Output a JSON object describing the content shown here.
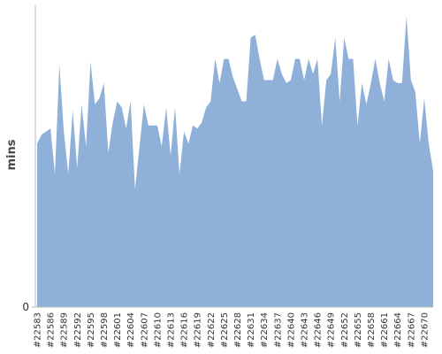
{
  "chart_data": {
    "type": "area",
    "y_label": "mins",
    "color": "#8fb0d9",
    "categories": [
      "#22583",
      null,
      null,
      "#22586",
      null,
      null,
      "#22589",
      null,
      null,
      "#22592",
      null,
      null,
      "#22595",
      null,
      null,
      "#22598",
      null,
      null,
      "#22601",
      null,
      null,
      "#22604",
      null,
      null,
      "#22607",
      null,
      null,
      "#22610",
      null,
      null,
      "#22613",
      null,
      null,
      "#22616",
      null,
      null,
      "#22619",
      null,
      null,
      "#22622",
      null,
      null,
      "#22625",
      null,
      null,
      "#22628",
      null,
      null,
      "#22631",
      null,
      null,
      "#22634",
      null,
      null,
      "#22637",
      null,
      null,
      "#22640",
      null,
      null,
      "#22643",
      null,
      null,
      "#22646",
      null,
      null,
      "#22649",
      null,
      null,
      "#22652",
      null,
      null,
      "#22655",
      null,
      null,
      "#22658",
      null,
      null,
      "#22661",
      null,
      null,
      "#22664",
      null,
      null,
      "#22667",
      null,
      null,
      "#22670",
      null,
      null
    ],
    "values": [
      54,
      57,
      58,
      59,
      44,
      80,
      58,
      44,
      65,
      46,
      67,
      53,
      81,
      67,
      69,
      74,
      51,
      61,
      68,
      66,
      59,
      68,
      39,
      53,
      67,
      60,
      60,
      60,
      53,
      66,
      50,
      66,
      44,
      58,
      54,
      60,
      59,
      61,
      66,
      68,
      82,
      74,
      82,
      82,
      76,
      72,
      68,
      68,
      89,
      90,
      82,
      75,
      75,
      75,
      82,
      77,
      74,
      75,
      82,
      82,
      75,
      82,
      77,
      82,
      60,
      75,
      77,
      89,
      68,
      89,
      82,
      82,
      60,
      74,
      67,
      74,
      82,
      74,
      68,
      82,
      75,
      74,
      74,
      96,
      75,
      71,
      54,
      69,
      54,
      45
    ],
    "ylim": [
      0,
      100
    ],
    "yticks": [
      0
    ]
  }
}
